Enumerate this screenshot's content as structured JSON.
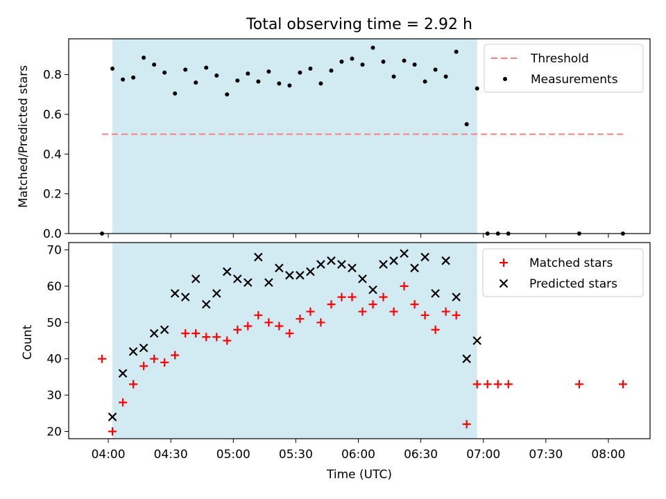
{
  "chart_data": [
    {
      "type": "scatter",
      "title": "Total observing time = 2.92 h",
      "ylabel": "Matched/Predicted stars",
      "ylim": [
        0,
        0.98
      ],
      "yticks": [
        "0.0",
        "0.2",
        "0.4",
        "0.6",
        "0.8"
      ],
      "threshold": 0.5,
      "threshold_range": [
        "03:57",
        "08:07"
      ],
      "observing_window": [
        "04:02",
        "06:57"
      ],
      "legend": [
        "Threshold",
        "Measurements"
      ],
      "legend_position": "top-right",
      "series": [
        {
          "name": "Measurements",
          "points": [
            [
              "03:57",
              0.0
            ],
            [
              "04:02",
              0.83
            ],
            [
              "04:07",
              0.775
            ],
            [
              "04:12",
              0.785
            ],
            [
              "04:17",
              0.885
            ],
            [
              "04:22",
              0.85
            ],
            [
              "04:27",
              0.81
            ],
            [
              "04:32",
              0.705
            ],
            [
              "04:37",
              0.825
            ],
            [
              "04:42",
              0.76
            ],
            [
              "04:47",
              0.835
            ],
            [
              "04:52",
              0.795
            ],
            [
              "04:57",
              0.7
            ],
            [
              "05:02",
              0.77
            ],
            [
              "05:07",
              0.805
            ],
            [
              "05:12",
              0.765
            ],
            [
              "05:17",
              0.815
            ],
            [
              "05:22",
              0.755
            ],
            [
              "05:27",
              0.745
            ],
            [
              "05:32",
              0.81
            ],
            [
              "05:37",
              0.83
            ],
            [
              "05:42",
              0.755
            ],
            [
              "05:47",
              0.82
            ],
            [
              "05:52",
              0.865
            ],
            [
              "05:57",
              0.88
            ],
            [
              "06:02",
              0.85
            ],
            [
              "06:07",
              0.935
            ],
            [
              "06:12",
              0.865
            ],
            [
              "06:17",
              0.79
            ],
            [
              "06:22",
              0.87
            ],
            [
              "06:27",
              0.85
            ],
            [
              "06:32",
              0.765
            ],
            [
              "06:37",
              0.825
            ],
            [
              "06:42",
              0.79
            ],
            [
              "06:47",
              0.915
            ],
            [
              "06:52",
              0.55
            ],
            [
              "06:57",
              0.73
            ],
            [
              "07:02",
              0.0
            ],
            [
              "07:07",
              0.0
            ],
            [
              "07:12",
              0.0
            ],
            [
              "07:46",
              0.0
            ],
            [
              "08:07",
              0.0
            ]
          ]
        }
      ]
    },
    {
      "type": "scatter",
      "xlabel": "Time (UTC)",
      "ylabel": "Count",
      "ylim": [
        18,
        72
      ],
      "yticks": [
        "20",
        "30",
        "40",
        "50",
        "60",
        "70"
      ],
      "xticks": [
        "04:00",
        "04:30",
        "05:00",
        "05:30",
        "06:00",
        "06:30",
        "07:00",
        "07:30",
        "08:00"
      ],
      "x_range": [
        "03:41",
        "08:20"
      ],
      "legend": [
        "Matched stars",
        "Predicted stars"
      ],
      "legend_position": "top-right",
      "series": [
        {
          "name": "Matched stars",
          "points": [
            [
              "03:57",
              40
            ],
            [
              "04:02",
              20
            ],
            [
              "04:07",
              28
            ],
            [
              "04:12",
              33
            ],
            [
              "04:17",
              38
            ],
            [
              "04:22",
              40
            ],
            [
              "04:27",
              39
            ],
            [
              "04:32",
              41
            ],
            [
              "04:37",
              47
            ],
            [
              "04:42",
              47
            ],
            [
              "04:47",
              46
            ],
            [
              "04:52",
              46
            ],
            [
              "04:57",
              45
            ],
            [
              "05:02",
              48
            ],
            [
              "05:07",
              49
            ],
            [
              "05:12",
              52
            ],
            [
              "05:17",
              50
            ],
            [
              "05:22",
              49
            ],
            [
              "05:27",
              47
            ],
            [
              "05:32",
              51
            ],
            [
              "05:37",
              53
            ],
            [
              "05:42",
              50
            ],
            [
              "05:47",
              55
            ],
            [
              "05:52",
              57
            ],
            [
              "05:57",
              57
            ],
            [
              "06:02",
              53
            ],
            [
              "06:07",
              55
            ],
            [
              "06:12",
              57
            ],
            [
              "06:17",
              53
            ],
            [
              "06:22",
              60
            ],
            [
              "06:27",
              55
            ],
            [
              "06:32",
              52
            ],
            [
              "06:37",
              48
            ],
            [
              "06:42",
              53
            ],
            [
              "06:47",
              52
            ],
            [
              "06:52",
              22
            ],
            [
              "06:57",
              33
            ],
            [
              "07:02",
              33
            ],
            [
              "07:07",
              33
            ],
            [
              "07:12",
              33
            ],
            [
              "07:46",
              33
            ],
            [
              "08:07",
              33
            ]
          ]
        },
        {
          "name": "Predicted stars",
          "points": [
            [
              "04:02",
              24
            ],
            [
              "04:07",
              36
            ],
            [
              "04:12",
              42
            ],
            [
              "04:17",
              43
            ],
            [
              "04:22",
              47
            ],
            [
              "04:27",
              48
            ],
            [
              "04:32",
              58
            ],
            [
              "04:37",
              57
            ],
            [
              "04:42",
              62
            ],
            [
              "04:47",
              55
            ],
            [
              "04:52",
              58
            ],
            [
              "04:57",
              64
            ],
            [
              "05:02",
              62
            ],
            [
              "05:07",
              61
            ],
            [
              "05:12",
              68
            ],
            [
              "05:17",
              61
            ],
            [
              "05:22",
              65
            ],
            [
              "05:27",
              63
            ],
            [
              "05:32",
              63
            ],
            [
              "05:37",
              64
            ],
            [
              "05:42",
              66
            ],
            [
              "05:47",
              67
            ],
            [
              "05:52",
              66
            ],
            [
              "05:57",
              65
            ],
            [
              "06:02",
              62
            ],
            [
              "06:07",
              59
            ],
            [
              "06:12",
              66
            ],
            [
              "06:17",
              67
            ],
            [
              "06:22",
              69
            ],
            [
              "06:27",
              65
            ],
            [
              "06:32",
              68
            ],
            [
              "06:37",
              58
            ],
            [
              "06:42",
              67
            ],
            [
              "06:47",
              57
            ],
            [
              "06:52",
              40
            ],
            [
              "06:57",
              45
            ]
          ]
        }
      ]
    }
  ],
  "colors": {
    "observing_window": "#add8e6",
    "threshold": "#ff7f7f",
    "matched": "#ff0000",
    "predicted": "#000000",
    "measurement": "#000000"
  }
}
